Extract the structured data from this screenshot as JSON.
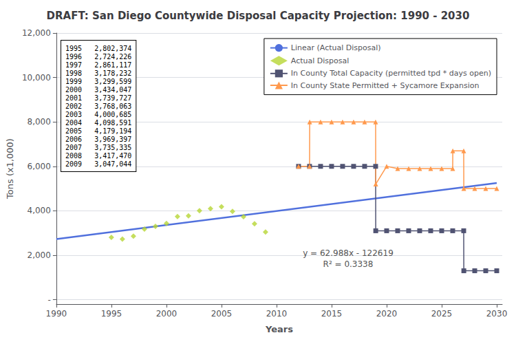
{
  "chart_data": {
    "type": "line",
    "title": "DRAFT: San Diego Countywide Disposal Capacity Projection: 1990 - 2030",
    "x_label": "Years",
    "y_label": "Tons (x1,000)",
    "xlim": [
      1990,
      2030.5
    ],
    "ylim": [
      -200,
      12000
    ],
    "xticks": [
      1990,
      1995,
      2000,
      2005,
      2010,
      2015,
      2020,
      2025,
      2030
    ],
    "yticks": [
      {
        "value": 0,
        "label": "-"
      },
      {
        "value": 2000,
        "label": "2,000"
      },
      {
        "value": 4000,
        "label": "4,000"
      },
      {
        "value": 6000,
        "label": "6,000"
      },
      {
        "value": 8000,
        "label": "8,000"
      },
      {
        "value": 10000,
        "label": "10,000"
      },
      {
        "value": 12000,
        "label": "12,000"
      }
    ],
    "grid": true,
    "legend": "upper right",
    "series": [
      {
        "name": "Linear (Actual Disposal)",
        "type": "line",
        "marker": "none",
        "line_style": "solid",
        "x": [
          1990,
          2030
        ],
        "values": [
          2727.12,
          5246.64
        ]
      },
      {
        "name": "Actual Disposal",
        "type": "scatter",
        "marker": "diamond",
        "line_style": "none",
        "x": [
          1995,
          1996,
          1997,
          1998,
          1999,
          2000,
          2001,
          2002,
          2003,
          2004,
          2005,
          2006,
          2007,
          2008,
          2009
        ],
        "values": [
          2802.374,
          2724.226,
          2861.117,
          3178.232,
          3299.599,
          3434.047,
          3739.727,
          3768.063,
          4000.685,
          4098.591,
          4179.194,
          3969.397,
          3735.335,
          3417.47,
          3047.044
        ]
      },
      {
        "name": "In County Total Capacity (permitted tpd * days open)",
        "type": "line",
        "marker": "square",
        "line_style": "solid",
        "x": [
          2012,
          2013,
          2014,
          2015,
          2016,
          2017,
          2018,
          2019,
          2019.01,
          2020,
          2021,
          2022,
          2023,
          2024,
          2025,
          2026,
          2027,
          2027.01,
          2028,
          2029,
          2030
        ],
        "values": [
          6000,
          6000,
          6000,
          6000,
          6000,
          6000,
          6000,
          6000,
          3100,
          3100,
          3100,
          3100,
          3100,
          3100,
          3100,
          3100,
          3100,
          1300,
          1300,
          1300,
          1300
        ]
      },
      {
        "name": "In County State Permitted + Sycamore Expansion",
        "type": "line",
        "marker": "triangle",
        "line_style": "solid",
        "x": [
          2012,
          2013,
          2013.01,
          2014,
          2015,
          2016,
          2017,
          2018,
          2019,
          2019.01,
          2020,
          2021,
          2022,
          2023,
          2024,
          2025,
          2026,
          2026.01,
          2027,
          2027.01,
          2028,
          2029,
          2030
        ],
        "values": [
          6000,
          6000,
          8000,
          8000,
          8000,
          8000,
          8000,
          8000,
          8000,
          5200,
          6000,
          5900,
          5900,
          5900,
          5900,
          5900,
          5900,
          6700,
          6700,
          5000,
          5000,
          5000,
          5000
        ]
      }
    ],
    "annotations": [
      {
        "text": "y = 62.988x - 122619\nR² = 0.3338",
        "x": 2016.5,
        "y": 1850
      }
    ],
    "table": [
      [
        "1995",
        "2,802,374"
      ],
      [
        "1996",
        "2,724,226"
      ],
      [
        "1997",
        "2,861,117"
      ],
      [
        "1998",
        "3,178,232"
      ],
      [
        "1999",
        "3,299,599"
      ],
      [
        "2000",
        "3,434,047"
      ],
      [
        "2001",
        "3,739,727"
      ],
      [
        "2002",
        "3,768,063"
      ],
      [
        "2003",
        "4,000,685"
      ],
      [
        "2004",
        "4,098,591"
      ],
      [
        "2005",
        "4,179,194"
      ],
      [
        "2006",
        "3,969,397"
      ],
      [
        "2007",
        "3,735,335"
      ],
      [
        "2008",
        "3,417,470"
      ],
      [
        "2009",
        "3,047,044"
      ]
    ]
  }
}
